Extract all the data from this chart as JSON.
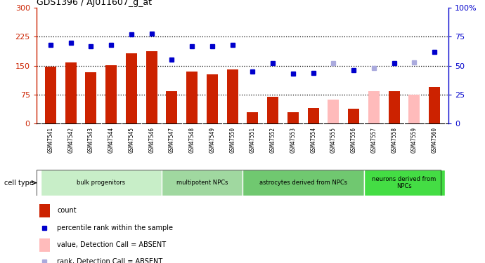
{
  "title": "GDS1396 / AJ011607_g_at",
  "samples": [
    "GSM47541",
    "GSM47542",
    "GSM47543",
    "GSM47544",
    "GSM47545",
    "GSM47546",
    "GSM47547",
    "GSM47548",
    "GSM47549",
    "GSM47550",
    "GSM47551",
    "GSM47552",
    "GSM47553",
    "GSM47554",
    "GSM47555",
    "GSM47556",
    "GSM47557",
    "GSM47558",
    "GSM47559",
    "GSM47560"
  ],
  "bar_values": [
    147,
    158,
    133,
    152,
    183,
    188,
    85,
    135,
    128,
    140,
    30,
    70,
    30,
    40,
    63,
    38,
    85,
    85,
    75,
    95
  ],
  "bar_absent": [
    false,
    false,
    false,
    false,
    false,
    false,
    false,
    false,
    false,
    false,
    false,
    false,
    false,
    false,
    true,
    false,
    true,
    false,
    true,
    false
  ],
  "rank_values": [
    68,
    70,
    67,
    68,
    77,
    78,
    55,
    67,
    67,
    68,
    45,
    52,
    43,
    44,
    52,
    46,
    48,
    52,
    53,
    62
  ],
  "rank_absent": [
    false,
    false,
    false,
    false,
    false,
    false,
    false,
    false,
    false,
    false,
    false,
    false,
    false,
    false,
    true,
    false,
    true,
    false,
    true,
    false
  ],
  "left_ylim": [
    0,
    300
  ],
  "right_ylim": [
    0,
    100
  ],
  "left_yticks": [
    0,
    75,
    150,
    225,
    300
  ],
  "right_yticks": [
    0,
    25,
    50,
    75,
    100
  ],
  "right_yticklabels": [
    "0",
    "25",
    "50",
    "75",
    "100%"
  ],
  "hlines": [
    75,
    150,
    225
  ],
  "cell_groups": [
    {
      "label": "bulk progenitors",
      "start": 0,
      "end": 6,
      "color": "#c8eec8"
    },
    {
      "label": "multipotent NPCs",
      "start": 6,
      "end": 10,
      "color": "#a0d8a0"
    },
    {
      "label": "astrocytes derived from NPCs",
      "start": 10,
      "end": 16,
      "color": "#70c870"
    },
    {
      "label": "neurons derived from\nNPCs",
      "start": 16,
      "end": 20,
      "color": "#44dd44"
    }
  ],
  "bar_color_present": "#cc2200",
  "bar_color_absent": "#ffbbbb",
  "rank_color_present": "#0000cc",
  "rank_color_absent": "#aaaadd",
  "bar_width": 0.55,
  "xtick_bg": "#d8d8d8"
}
